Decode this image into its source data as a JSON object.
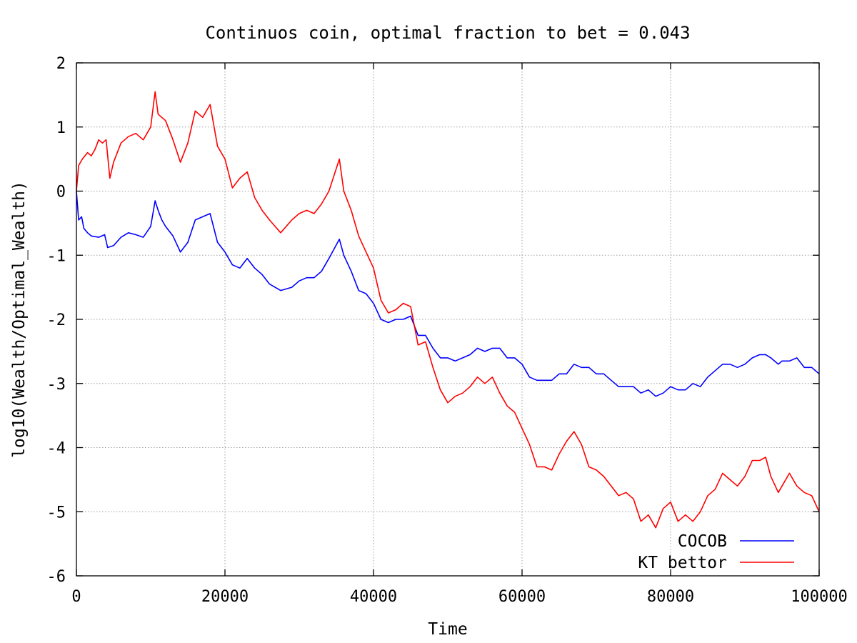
{
  "chart_data": {
    "type": "line",
    "title": "Continuos coin, optimal fraction to bet = 0.043",
    "xlabel": "Time",
    "ylabel": "log10(Wealth/Optimal_Wealth)",
    "xlim": [
      0,
      100000
    ],
    "ylim": [
      -6,
      2
    ],
    "x_ticks": [
      0,
      20000,
      40000,
      60000,
      80000,
      100000
    ],
    "y_ticks": [
      -6,
      -5,
      -4,
      -3,
      -2,
      -1,
      0,
      1,
      2
    ],
    "x_tick_labels": [
      "0",
      "20000",
      "40000",
      "60000",
      "80000",
      "100000"
    ],
    "y_tick_labels": [
      "-6",
      "-5",
      "-4",
      "-3",
      "-2",
      "-1",
      "0",
      "1",
      "2"
    ],
    "grid": true,
    "legend_position": "bottom-right",
    "series": [
      {
        "name": "COCOB",
        "color": "#0000ff",
        "x": [
          0,
          300,
          700,
          1000,
          1500,
          2000,
          3000,
          3800,
          4200,
          5000,
          6000,
          7000,
          8000,
          9000,
          10000,
          10600,
          11000,
          11500,
          12000,
          13000,
          14000,
          15000,
          16000,
          17000,
          18000,
          19000,
          20000,
          21000,
          22000,
          23000,
          24000,
          25000,
          26000,
          27500,
          29000,
          30000,
          31000,
          32000,
          33000,
          34000,
          35400,
          36000,
          37000,
          38000,
          39000,
          40000,
          41000,
          42000,
          43000,
          44000,
          45000,
          46000,
          47000,
          48000,
          49000,
          50000,
          51000,
          52000,
          53000,
          54000,
          55000,
          56000,
          57000,
          58000,
          59000,
          60000,
          61000,
          62000,
          63000,
          64000,
          65000,
          66000,
          67000,
          68000,
          69000,
          70000,
          71000,
          72000,
          73000,
          74000,
          75000,
          76000,
          77000,
          78000,
          79000,
          80000,
          81000,
          82000,
          83000,
          84000,
          85000,
          86000,
          87000,
          88000,
          89000,
          90000,
          91000,
          92000,
          92800,
          93500,
          94500,
          95000,
          96000,
          97000,
          98000,
          99000,
          100000
        ],
        "y": [
          0,
          -0.45,
          -0.4,
          -0.58,
          -0.65,
          -0.7,
          -0.72,
          -0.68,
          -0.88,
          -0.85,
          -0.72,
          -0.65,
          -0.68,
          -0.72,
          -0.55,
          -0.15,
          -0.3,
          -0.45,
          -0.55,
          -0.7,
          -0.95,
          -0.8,
          -0.45,
          -0.4,
          -0.35,
          -0.8,
          -0.95,
          -1.15,
          -1.2,
          -1.05,
          -1.2,
          -1.3,
          -1.45,
          -1.55,
          -1.5,
          -1.4,
          -1.35,
          -1.35,
          -1.25,
          -1.05,
          -0.75,
          -1.0,
          -1.25,
          -1.55,
          -1.6,
          -1.75,
          -2.0,
          -2.05,
          -2.0,
          -2.0,
          -1.95,
          -2.25,
          -2.25,
          -2.45,
          -2.6,
          -2.6,
          -2.65,
          -2.6,
          -2.55,
          -2.45,
          -2.5,
          -2.45,
          -2.45,
          -2.6,
          -2.6,
          -2.7,
          -2.9,
          -2.95,
          -2.95,
          -2.95,
          -2.85,
          -2.85,
          -2.7,
          -2.75,
          -2.75,
          -2.85,
          -2.85,
          -2.95,
          -3.05,
          -3.05,
          -3.05,
          -3.15,
          -3.1,
          -3.2,
          -3.15,
          -3.05,
          -3.1,
          -3.1,
          -3.0,
          -3.05,
          -2.9,
          -2.8,
          -2.7,
          -2.7,
          -2.75,
          -2.7,
          -2.6,
          -2.55,
          -2.55,
          -2.6,
          -2.7,
          -2.65,
          -2.65,
          -2.6,
          -2.75,
          -2.75,
          -2.85
        ]
      },
      {
        "name": "KT bettor",
        "color": "#ff0000",
        "x": [
          0,
          300,
          800,
          1500,
          2000,
          2500,
          3000,
          3500,
          4000,
          4500,
          5000,
          6000,
          7000,
          8000,
          9000,
          10000,
          10600,
          11000,
          12000,
          13000,
          14000,
          15000,
          16000,
          17000,
          18000,
          19000,
          20000,
          21000,
          22000,
          23000,
          24000,
          25000,
          26000,
          27500,
          29000,
          30000,
          31000,
          32000,
          33000,
          34000,
          35400,
          36000,
          37000,
          38000,
          39000,
          40000,
          41000,
          42000,
          43000,
          44000,
          45000,
          46000,
          47000,
          48000,
          49000,
          50000,
          51000,
          52000,
          53000,
          54000,
          55000,
          56000,
          57000,
          58000,
          59000,
          60000,
          61000,
          62000,
          63000,
          64000,
          65000,
          66000,
          67000,
          68000,
          69000,
          70000,
          71000,
          72000,
          73000,
          74000,
          75000,
          76000,
          77000,
          78000,
          79000,
          80000,
          81000,
          82000,
          83000,
          84000,
          85000,
          86000,
          87000,
          88000,
          89000,
          90000,
          91000,
          92000,
          92800,
          93500,
          94500,
          95000,
          96000,
          97000,
          98000,
          99000,
          100000
        ],
        "y": [
          0,
          0.4,
          0.5,
          0.6,
          0.55,
          0.65,
          0.8,
          0.75,
          0.8,
          0.2,
          0.45,
          0.75,
          0.85,
          0.9,
          0.8,
          1.0,
          1.55,
          1.2,
          1.1,
          0.8,
          0.45,
          0.75,
          1.25,
          1.15,
          1.35,
          0.7,
          0.5,
          0.05,
          0.2,
          0.3,
          -0.1,
          -0.3,
          -0.45,
          -0.65,
          -0.45,
          -0.35,
          -0.3,
          -0.35,
          -0.2,
          0.0,
          0.5,
          0.0,
          -0.3,
          -0.7,
          -0.95,
          -1.2,
          -1.7,
          -1.9,
          -1.85,
          -1.75,
          -1.8,
          -2.4,
          -2.35,
          -2.75,
          -3.1,
          -3.3,
          -3.2,
          -3.15,
          -3.05,
          -2.9,
          -3.0,
          -2.9,
          -3.15,
          -3.35,
          -3.45,
          -3.7,
          -3.95,
          -4.3,
          -4.3,
          -4.35,
          -4.1,
          -3.9,
          -3.75,
          -3.95,
          -4.3,
          -4.35,
          -4.45,
          -4.6,
          -4.75,
          -4.7,
          -4.8,
          -5.15,
          -5.05,
          -5.25,
          -4.95,
          -4.85,
          -5.15,
          -5.05,
          -5.15,
          -5.0,
          -4.75,
          -4.65,
          -4.4,
          -4.5,
          -4.6,
          -4.45,
          -4.2,
          -4.2,
          -4.15,
          -4.45,
          -4.7,
          -4.6,
          -4.4,
          -4.6,
          -4.7,
          -4.75,
          -5.0
        ]
      }
    ]
  }
}
